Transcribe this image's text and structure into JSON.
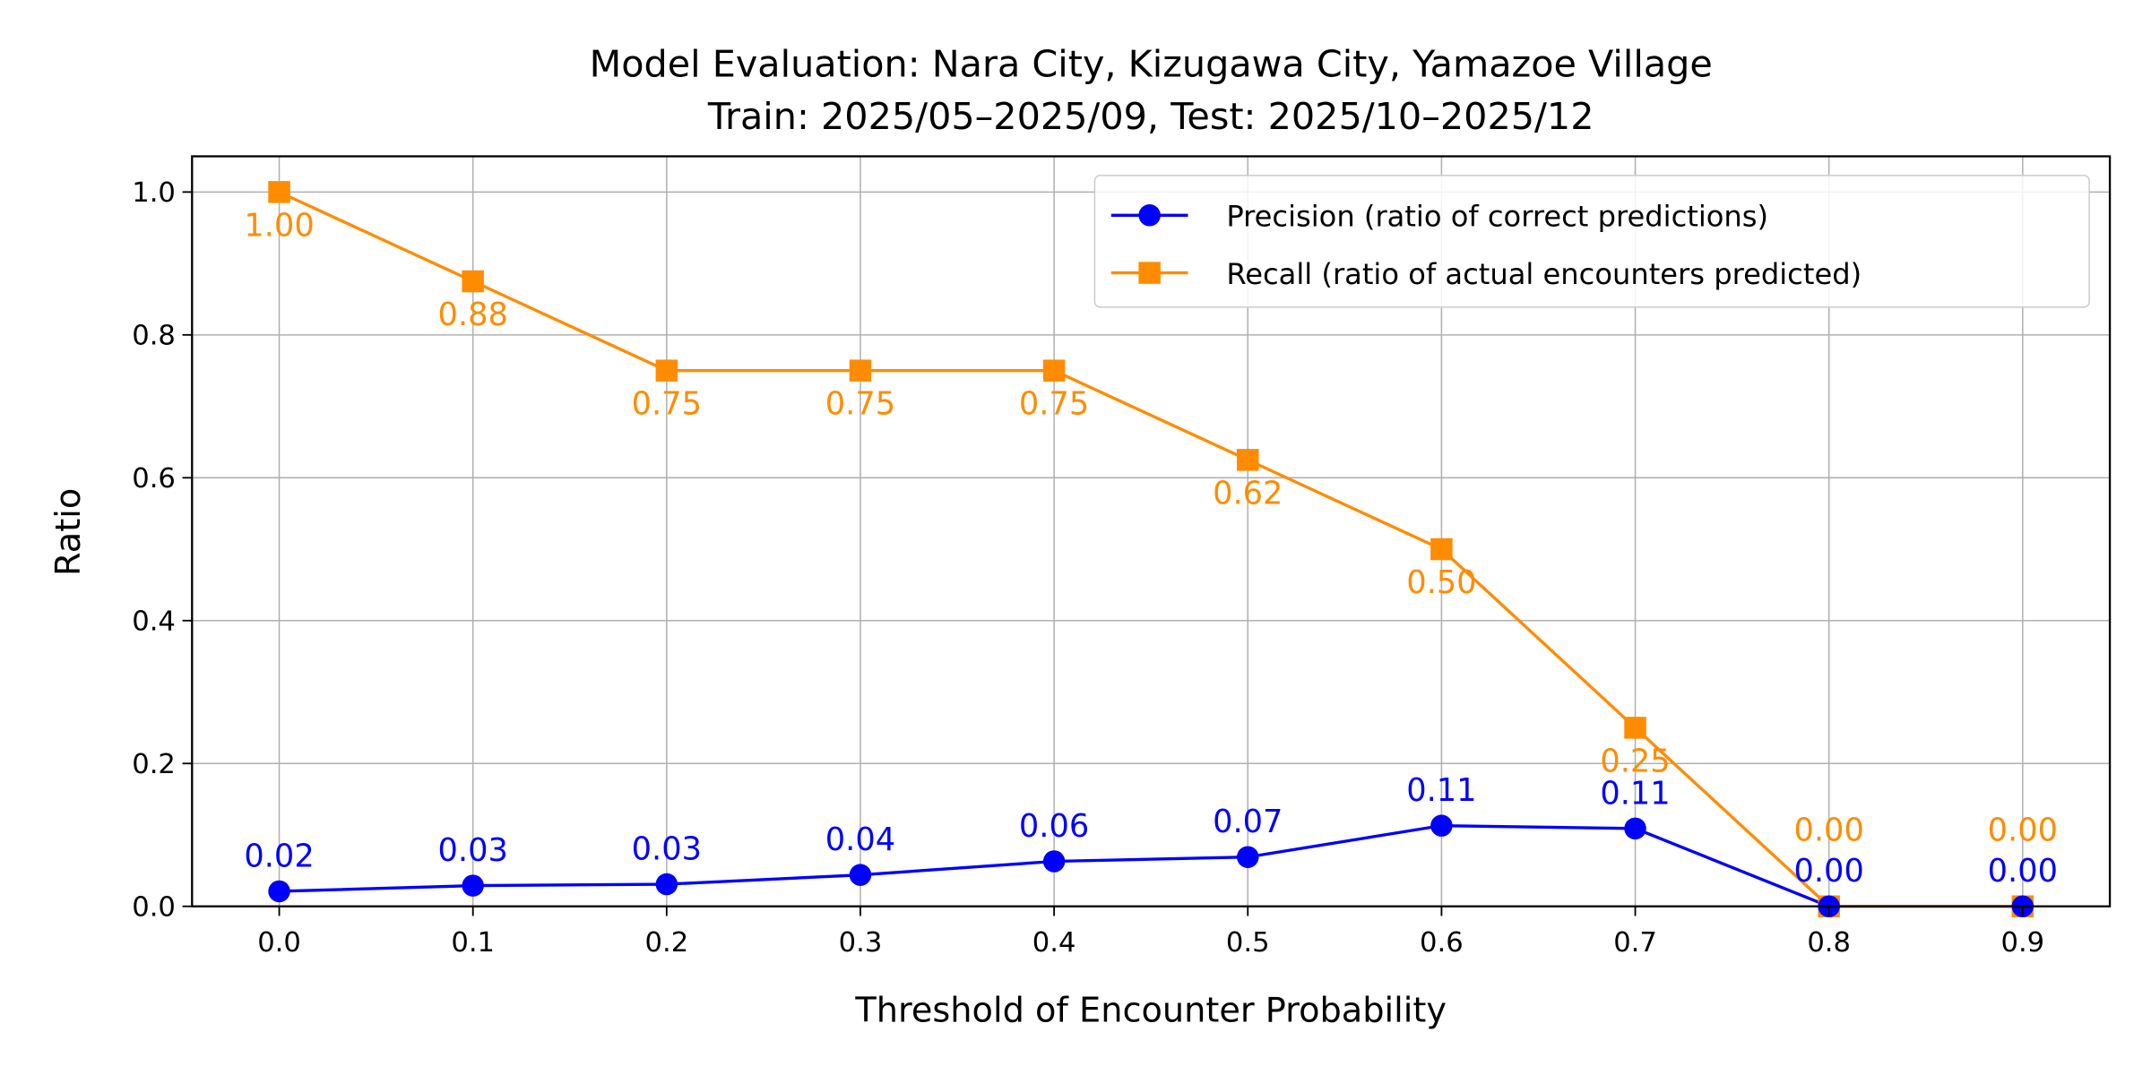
{
  "chart_data": {
    "type": "line",
    "title": "Model Evaluation: Nara City, Kizugawa City, Yamazoe Village",
    "subtitle": "Train: 2025/05–2025/09, Test: 2025/10–2025/12",
    "xlabel": "Threshold of Encounter Probability",
    "ylabel": "Ratio",
    "x": [
      0.0,
      0.1,
      0.2,
      0.3,
      0.4,
      0.5,
      0.6,
      0.7,
      0.8,
      0.9
    ],
    "x_tick_labels": [
      "0.0",
      "0.1",
      "0.2",
      "0.3",
      "0.4",
      "0.5",
      "0.6",
      "0.7",
      "0.8",
      "0.9"
    ],
    "y_tick_values": [
      0.0,
      0.2,
      0.4,
      0.6,
      0.8,
      1.0
    ],
    "y_tick_labels": [
      "0.0",
      "0.2",
      "0.4",
      "0.6",
      "0.8",
      "1.0"
    ],
    "xlim": [
      -0.045,
      0.945
    ],
    "ylim": [
      0,
      1.05
    ],
    "grid": true,
    "legend_position": "top-right",
    "series": [
      {
        "name": "Precision (ratio of correct predictions)",
        "color": "#0000ff",
        "marker": "circle",
        "values": [
          0.021,
          0.029,
          0.031,
          0.044,
          0.063,
          0.069,
          0.113,
          0.109,
          0.0,
          0.0
        ],
        "data_labels": [
          "0.02",
          "0.03",
          "0.03",
          "0.04",
          "0.06",
          "0.07",
          "0.11",
          "0.11",
          "0.00",
          "0.00"
        ]
      },
      {
        "name": "Recall (ratio of actual encounters predicted)",
        "color": "#ff8c00",
        "marker": "square",
        "values": [
          1.0,
          0.875,
          0.75,
          0.75,
          0.75,
          0.625,
          0.5,
          0.25,
          0.0,
          0.0
        ],
        "data_labels": [
          "1.00",
          "0.88",
          "0.75",
          "0.75",
          "0.75",
          "0.62",
          "0.50",
          "0.25",
          "0.00",
          "0.00"
        ]
      }
    ]
  }
}
